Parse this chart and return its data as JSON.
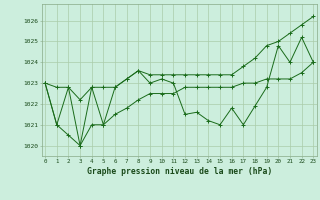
{
  "title": "Graphe pression niveau de la mer (hPa)",
  "bg_color": "#cceedd",
  "line_color": "#1a6b1a",
  "grid_color": "#aaccaa",
  "x_labels": [
    "0",
    "1",
    "2",
    "3",
    "4",
    "5",
    "6",
    "7",
    "8",
    "9",
    "10",
    "11",
    "12",
    "13",
    "14",
    "15",
    "16",
    "17",
    "18",
    "19",
    "20",
    "21",
    "22",
    "23"
  ],
  "y_min": 1019.5,
  "y_max": 1026.8,
  "y_ticks": [
    1020,
    1021,
    1022,
    1023,
    1024,
    1025,
    1026
  ],
  "main_line": [
    1023.0,
    1021.0,
    1022.8,
    1020.0,
    1022.8,
    1021.0,
    1022.8,
    1023.2,
    1023.6,
    1023.0,
    1023.2,
    1023.0,
    1021.5,
    1021.6,
    1021.2,
    1021.0,
    1021.8,
    1021.0,
    1021.9,
    1022.8,
    1024.8,
    1024.0,
    1025.2,
    1024.0
  ],
  "upper_line": [
    1023.0,
    1022.8,
    1022.8,
    1022.2,
    1022.8,
    1022.8,
    1022.8,
    1023.2,
    1023.6,
    1023.4,
    1023.4,
    1023.4,
    1023.4,
    1023.4,
    1023.4,
    1023.4,
    1023.4,
    1023.8,
    1024.2,
    1024.8,
    1025.0,
    1025.4,
    1025.8,
    1026.2
  ],
  "lower_line": [
    1023.0,
    1021.0,
    1020.5,
    1020.0,
    1021.0,
    1021.0,
    1021.5,
    1021.8,
    1022.2,
    1022.5,
    1022.5,
    1022.5,
    1022.8,
    1022.8,
    1022.8,
    1022.8,
    1022.8,
    1023.0,
    1023.0,
    1023.2,
    1023.2,
    1023.2,
    1023.5,
    1024.0
  ],
  "upper_markers": [
    0,
    7,
    8,
    9,
    10,
    11,
    12,
    13,
    14,
    15,
    16,
    17,
    18,
    19,
    20,
    21,
    22,
    23
  ],
  "lower_markers": [
    0,
    1,
    2,
    3,
    4,
    5,
    6,
    7,
    8,
    9,
    10,
    11,
    12,
    13,
    14,
    15,
    16,
    17,
    18,
    19,
    20,
    21,
    22,
    23
  ]
}
